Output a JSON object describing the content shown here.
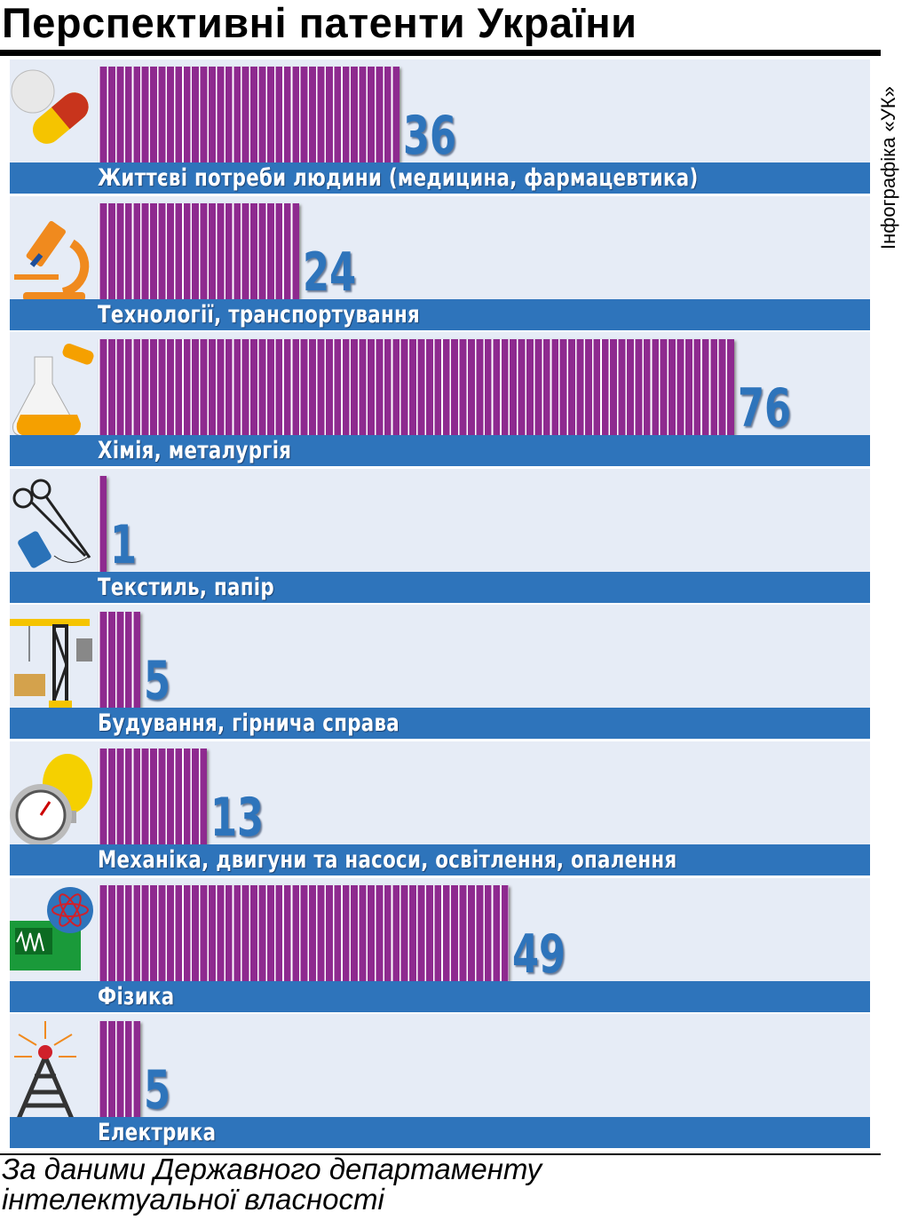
{
  "title": "Перспективні патенти України",
  "credit": "Інфографіка «УК»",
  "footer": {
    "line1": "За даними Державного департаменту",
    "line2": "інтелектуальної власності"
  },
  "colors": {
    "bar": "#8e2a8f",
    "band": "#2e74bb",
    "number": "#2e74bb",
    "row_bg": "#e6ecf6"
  },
  "chart_data": {
    "type": "bar",
    "orientation": "horizontal",
    "title": "Перспективні патенти України",
    "xlim": [
      0,
      76
    ],
    "categories": [
      "Життєві потреби людини (медицина, фармацевтика)",
      "Технології, транспортування",
      "Хімія, металургія",
      "Текстиль, папір",
      "Будування, гірнича справа",
      "Механіка, двигуни та насоси, освітлення, опалення",
      "Фізика",
      "Електрика"
    ],
    "values": [
      36,
      24,
      76,
      1,
      5,
      13,
      49,
      5
    ],
    "icons": [
      "pill-capsule-icon",
      "microscope-icon",
      "flask-icon",
      "scissors-needle-thread-icon",
      "crane-icon",
      "gauge-lightbulb-icon",
      "atom-oscilloscope-icon",
      "radio-tower-icon"
    ]
  }
}
